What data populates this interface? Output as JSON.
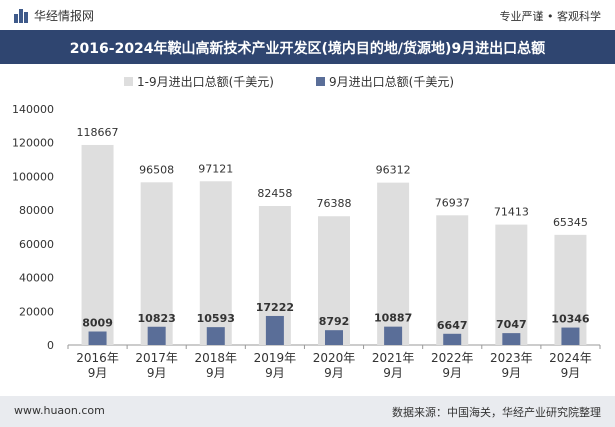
{
  "header": {
    "brand": "华经情报网",
    "tagline": "专业严谨 • 客观科学"
  },
  "footer": {
    "site": "www.huaon.com",
    "source": "数据来源：中国海关，华经产业研究院整理"
  },
  "colors": {
    "title_bg": "#2f4570",
    "series_total": "#dedede",
    "series_month": "#5a6e98"
  },
  "chart_data": {
    "type": "bar",
    "title": "2016-2024年鞍山高新技术产业开发区(境内目的地/货源地)9月进出口总额",
    "categories": [
      "2016年\n9月",
      "2017年\n9月",
      "2018年\n9月",
      "2019年\n9月",
      "2020年\n9月",
      "2021年\n9月",
      "2022年\n9月",
      "2023年\n9月",
      "2024年\n9月"
    ],
    "series": [
      {
        "name": "1-9月进出口总额(千美元)",
        "values": [
          118667,
          96508,
          97121,
          82458,
          76388,
          96312,
          76937,
          71413,
          65345
        ]
      },
      {
        "name": "9月进出口总额(千美元)",
        "values": [
          8009,
          10823,
          10593,
          17222,
          8792,
          10887,
          6647,
          7047,
          10346
        ]
      }
    ],
    "y_ticks": [
      0,
      20000,
      40000,
      60000,
      80000,
      100000,
      120000,
      140000
    ],
    "ylim": [
      0,
      140000
    ],
    "grid": false,
    "legend_position": "top-left"
  }
}
